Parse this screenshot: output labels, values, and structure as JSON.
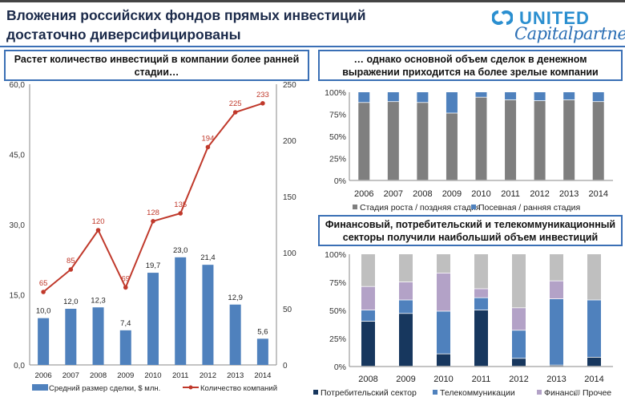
{
  "title_line1": "Вложения российских фондов прямых инвестиций",
  "title_line2": "достаточно диверсифицированы",
  "logo": {
    "line1": "UNITED",
    "line2": "Capitalpartners"
  },
  "colors": {
    "bar_blue": "#4f81bd",
    "line_red": "#c0392b",
    "gray": "#7f7f7f",
    "navy": "#17375e",
    "lilac": "#b3a2c7",
    "light_gray": "#bfbfbf",
    "frame": "#3a6fb5"
  },
  "chart_data": [
    {
      "type": "bar+line",
      "title": "Растет количество инвестиций в компании более ранней стадии…",
      "categories": [
        "2006",
        "2007",
        "2008",
        "2009",
        "2010",
        "2011",
        "2012",
        "2013",
        "2014"
      ],
      "series": [
        {
          "name": "Средний размер сделки, $ млн.",
          "axis": "left",
          "kind": "bar",
          "values": [
            10.0,
            12.0,
            12.3,
            7.4,
            19.7,
            23.0,
            21.4,
            12.9,
            5.6
          ],
          "labels": [
            "10,0",
            "12,0",
            "12,3",
            "7,4",
            "19,7",
            "23,0",
            "21,4",
            "12,9",
            "5,6"
          ]
        },
        {
          "name": "Количество компаний",
          "axis": "right",
          "kind": "line",
          "values": [
            65,
            85,
            120,
            69,
            128,
            135,
            194,
            225,
            233
          ]
        }
      ],
      "ylim_left": [
        0,
        60
      ],
      "yticks_left": [
        "0,0",
        "15,0",
        "30,0",
        "45,0",
        "60,0"
      ],
      "ylim_right": [
        0,
        250
      ],
      "yticks_right": [
        "0",
        "50",
        "100",
        "150",
        "200",
        "250"
      ],
      "legend": "bottom"
    },
    {
      "type": "stacked-bar-100",
      "title": "… однако основной объем сделок в денежном выражении приходится на более зрелые компании",
      "categories": [
        "2006",
        "2007",
        "2008",
        "2009",
        "2010",
        "2011",
        "2012",
        "2013",
        "2014"
      ],
      "series": [
        {
          "name": "Стадия роста / поздняя стадия",
          "values": [
            88,
            89,
            88,
            76,
            94,
            91,
            90,
            91,
            89
          ]
        },
        {
          "name": "Посевная / ранняя стадия",
          "values": [
            12,
            11,
            12,
            24,
            6,
            9,
            10,
            9,
            11
          ]
        }
      ],
      "yticks": [
        "0%",
        "25%",
        "50%",
        "75%",
        "100%"
      ],
      "ylim": [
        0,
        100
      ],
      "legend": "bottom"
    },
    {
      "type": "stacked-bar-100",
      "title": "Финансовый, потребительский и телекоммуникационный секторы получили наибольший объем инвестиций",
      "categories": [
        "2008",
        "2009",
        "2010",
        "2011",
        "2012",
        "2013",
        "2014"
      ],
      "series": [
        {
          "name": "Потребительский сектор",
          "values": [
            40,
            47,
            11,
            50,
            7,
            1,
            8
          ]
        },
        {
          "name": "Телекоммуникации",
          "values": [
            10,
            12,
            38,
            11,
            25,
            59,
            51
          ]
        },
        {
          "name": "Финансы",
          "values": [
            21,
            16,
            34,
            8,
            20,
            16,
            0
          ]
        },
        {
          "name": "Прочее",
          "values": [
            29,
            25,
            17,
            31,
            48,
            24,
            41
          ]
        }
      ],
      "yticks": [
        "0%",
        "25%",
        "50%",
        "75%",
        "100%"
      ],
      "ylim": [
        0,
        100
      ],
      "legend": "bottom"
    }
  ]
}
